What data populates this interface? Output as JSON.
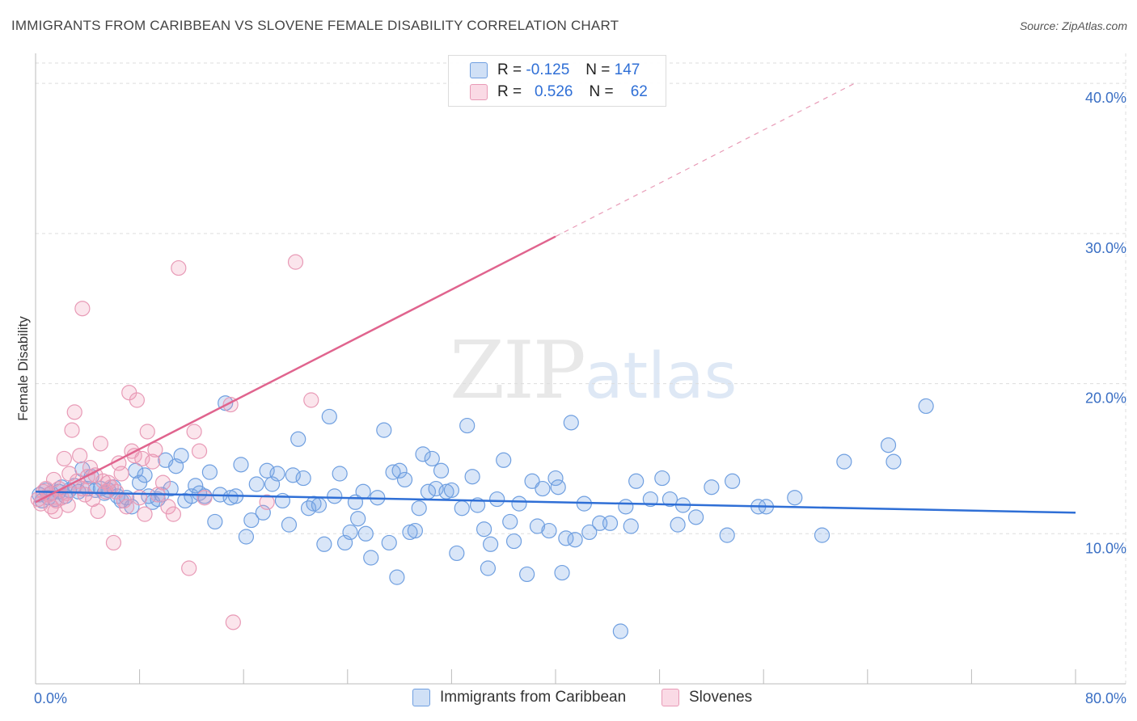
{
  "title": "IMMIGRANTS FROM CARIBBEAN VS SLOVENE FEMALE DISABILITY CORRELATION CHART",
  "source": "Source: ZipAtlas.com",
  "watermark": {
    "zip": "ZIP",
    "atlas": "atlas"
  },
  "colors": {
    "blue_fill": "rgba(120,165,230,0.28)",
    "blue_stroke": "#6f9fe0",
    "blue_line": "#2f6fd6",
    "pink_fill": "rgba(240,150,180,0.25)",
    "pink_stroke": "#e89ab6",
    "pink_line": "#e0648e",
    "grid": "#dddddd",
    "tick_label": "#3a6fc4"
  },
  "legend": {
    "r_label": "R =",
    "n_label": "N =",
    "series1": {
      "r": "-0.125",
      "n": "147"
    },
    "series2": {
      "r": "0.526",
      "n": "62"
    }
  },
  "chart_data": {
    "type": "scatter",
    "title": "IMMIGRANTS FROM CARIBBEAN VS SLOVENE FEMALE DISABILITY CORRELATION CHART",
    "xlabel": "",
    "ylabel": "Female Disability",
    "xlim": [
      0,
      80
    ],
    "ylim": [
      0,
      42
    ],
    "x_tick_labels": {
      "min": "0.0%",
      "max": "80.0%"
    },
    "y_ticks": [
      10,
      20,
      30,
      40
    ],
    "y_tick_labels": [
      "10.0%",
      "20.0%",
      "30.0%",
      "40.0%"
    ],
    "series": [
      {
        "name": "Immigrants from Caribbean",
        "trend": {
          "x0": 0,
          "y0": 12.8,
          "x1": 80,
          "y1": 11.4
        },
        "points": [
          [
            0.3,
            12.6
          ],
          [
            0.5,
            12.2
          ],
          [
            0.8,
            12.9
          ],
          [
            1.0,
            12.4
          ],
          [
            1.2,
            12.7
          ],
          [
            1.5,
            12.3
          ],
          [
            1.8,
            12.8
          ],
          [
            2.0,
            13.1
          ],
          [
            2.3,
            12.5
          ],
          [
            2.6,
            12.9
          ],
          [
            3.0,
            13.2
          ],
          [
            3.3,
            12.8
          ],
          [
            3.6,
            14.3
          ],
          [
            4.0,
            13.0
          ],
          [
            4.3,
            13.8
          ],
          [
            4.6,
            12.9
          ],
          [
            5.0,
            13.0
          ],
          [
            5.3,
            12.7
          ],
          [
            5.6,
            12.9
          ],
          [
            6.0,
            13.1
          ],
          [
            6.3,
            12.5
          ],
          [
            6.6,
            12.2
          ],
          [
            7.0,
            12.4
          ],
          [
            7.4,
            11.8
          ],
          [
            7.7,
            14.2
          ],
          [
            8.0,
            13.4
          ],
          [
            8.4,
            13.9
          ],
          [
            8.7,
            12.5
          ],
          [
            9.0,
            12.1
          ],
          [
            9.4,
            12.3
          ],
          [
            9.7,
            12.6
          ],
          [
            10.0,
            14.9
          ],
          [
            10.4,
            13.0
          ],
          [
            10.8,
            14.5
          ],
          [
            11.2,
            15.2
          ],
          [
            11.5,
            12.2
          ],
          [
            12.0,
            12.5
          ],
          [
            12.3,
            13.2
          ],
          [
            12.6,
            12.7
          ],
          [
            13.0,
            12.5
          ],
          [
            13.4,
            14.1
          ],
          [
            13.8,
            10.8
          ],
          [
            14.2,
            12.6
          ],
          [
            14.6,
            18.7
          ],
          [
            15.0,
            12.4
          ],
          [
            15.4,
            12.5
          ],
          [
            15.8,
            14.6
          ],
          [
            16.2,
            9.8
          ],
          [
            16.6,
            10.9
          ],
          [
            17.0,
            13.3
          ],
          [
            17.5,
            11.4
          ],
          [
            17.8,
            14.2
          ],
          [
            18.2,
            13.3
          ],
          [
            18.6,
            14.0
          ],
          [
            19.0,
            12.2
          ],
          [
            19.5,
            10.6
          ],
          [
            19.8,
            13.9
          ],
          [
            20.2,
            16.3
          ],
          [
            20.6,
            13.7
          ],
          [
            21.0,
            11.7
          ],
          [
            21.4,
            12.0
          ],
          [
            21.8,
            11.9
          ],
          [
            22.2,
            9.3
          ],
          [
            22.6,
            17.8
          ],
          [
            23.0,
            12.5
          ],
          [
            23.4,
            14.0
          ],
          [
            23.8,
            9.4
          ],
          [
            24.2,
            10.1
          ],
          [
            24.6,
            12.1
          ],
          [
            24.8,
            11.0
          ],
          [
            25.2,
            12.8
          ],
          [
            25.4,
            10.0
          ],
          [
            25.8,
            8.4
          ],
          [
            26.3,
            12.4
          ],
          [
            26.8,
            16.9
          ],
          [
            27.2,
            9.4
          ],
          [
            27.5,
            14.1
          ],
          [
            27.8,
            7.1
          ],
          [
            28.0,
            14.2
          ],
          [
            28.4,
            13.6
          ],
          [
            28.8,
            10.1
          ],
          [
            29.2,
            10.2
          ],
          [
            29.5,
            11.7
          ],
          [
            29.8,
            15.3
          ],
          [
            30.2,
            12.8
          ],
          [
            30.5,
            15.0
          ],
          [
            30.8,
            13.0
          ],
          [
            31.2,
            14.2
          ],
          [
            31.6,
            12.8
          ],
          [
            32.0,
            12.9
          ],
          [
            32.4,
            8.7
          ],
          [
            32.8,
            11.7
          ],
          [
            33.2,
            17.2
          ],
          [
            33.6,
            13.8
          ],
          [
            34.0,
            11.9
          ],
          [
            34.5,
            10.3
          ],
          [
            34.8,
            7.7
          ],
          [
            35.0,
            9.3
          ],
          [
            35.5,
            12.3
          ],
          [
            36.0,
            14.9
          ],
          [
            36.5,
            10.8
          ],
          [
            36.8,
            9.5
          ],
          [
            37.2,
            12.0
          ],
          [
            37.8,
            7.3
          ],
          [
            38.2,
            13.5
          ],
          [
            38.6,
            10.5
          ],
          [
            39.0,
            13.0
          ],
          [
            39.5,
            10.2
          ],
          [
            40.0,
            13.7
          ],
          [
            40.2,
            13.1
          ],
          [
            40.5,
            7.4
          ],
          [
            40.8,
            9.7
          ],
          [
            41.2,
            17.4
          ],
          [
            41.5,
            9.6
          ],
          [
            42.2,
            12.0
          ],
          [
            42.6,
            10.1
          ],
          [
            43.4,
            10.7
          ],
          [
            44.2,
            10.7
          ],
          [
            45.4,
            11.8
          ],
          [
            45.8,
            10.5
          ],
          [
            46.2,
            13.5
          ],
          [
            47.3,
            12.3
          ],
          [
            48.2,
            13.7
          ],
          [
            48.8,
            12.3
          ],
          [
            49.4,
            10.6
          ],
          [
            49.8,
            11.9
          ],
          [
            50.8,
            11.1
          ],
          [
            52.0,
            13.1
          ],
          [
            53.2,
            9.9
          ],
          [
            53.6,
            13.5
          ],
          [
            55.6,
            11.8
          ],
          [
            56.2,
            11.8
          ],
          [
            58.4,
            12.4
          ],
          [
            60.5,
            9.9
          ],
          [
            62.2,
            14.8
          ],
          [
            65.6,
            15.9
          ],
          [
            66.0,
            14.8
          ],
          [
            68.5,
            18.5
          ],
          [
            45.0,
            3.5
          ]
        ]
      },
      {
        "name": "Slovenes",
        "trend": {
          "x0": 0,
          "y0": 12.1,
          "x1": 40,
          "y1": 29.8,
          "dash_x1": 63,
          "dash_y1": 40.0
        },
        "points": [
          [
            0.2,
            12.3
          ],
          [
            0.4,
            12.0
          ],
          [
            0.6,
            12.8
          ],
          [
            0.8,
            13.0
          ],
          [
            1.0,
            12.6
          ],
          [
            1.2,
            11.8
          ],
          [
            1.4,
            13.6
          ],
          [
            1.6,
            12.2
          ],
          [
            1.8,
            13.0
          ],
          [
            2.0,
            12.4
          ],
          [
            2.2,
            15.0
          ],
          [
            2.4,
            12.7
          ],
          [
            2.6,
            14.0
          ],
          [
            2.8,
            16.9
          ],
          [
            3.0,
            18.1
          ],
          [
            3.2,
            13.5
          ],
          [
            3.4,
            15.2
          ],
          [
            3.6,
            13.0
          ],
          [
            3.8,
            12.6
          ],
          [
            4.0,
            13.8
          ],
          [
            4.2,
            14.4
          ],
          [
            4.4,
            12.3
          ],
          [
            4.6,
            13.9
          ],
          [
            4.8,
            11.5
          ],
          [
            5.0,
            16.0
          ],
          [
            5.2,
            13.5
          ],
          [
            5.4,
            12.8
          ],
          [
            5.6,
            13.4
          ],
          [
            5.8,
            13.1
          ],
          [
            6.0,
            9.4
          ],
          [
            6.2,
            12.8
          ],
          [
            6.4,
            14.7
          ],
          [
            6.6,
            14.0
          ],
          [
            6.8,
            12.2
          ],
          [
            7.0,
            11.8
          ],
          [
            7.2,
            19.4
          ],
          [
            7.4,
            15.5
          ],
          [
            7.6,
            15.2
          ],
          [
            7.8,
            18.9
          ],
          [
            8.0,
            12.4
          ],
          [
            8.2,
            15.0
          ],
          [
            8.4,
            11.3
          ],
          [
            8.6,
            16.8
          ],
          [
            9.0,
            14.8
          ],
          [
            9.2,
            15.6
          ],
          [
            9.4,
            12.6
          ],
          [
            9.8,
            13.4
          ],
          [
            10.2,
            11.8
          ],
          [
            10.6,
            11.3
          ],
          [
            11.0,
            27.7
          ],
          [
            11.8,
            7.7
          ],
          [
            12.2,
            16.8
          ],
          [
            12.6,
            15.5
          ],
          [
            13.0,
            12.4
          ],
          [
            15.0,
            18.6
          ],
          [
            15.2,
            4.1
          ],
          [
            17.8,
            12.1
          ],
          [
            20.0,
            28.1
          ],
          [
            21.2,
            18.9
          ],
          [
            1.5,
            11.5
          ],
          [
            2.5,
            11.9
          ],
          [
            3.6,
            25.0
          ]
        ]
      }
    ]
  },
  "bottom_legend": {
    "series1": "Immigrants from Caribbean",
    "series2": "Slovenes"
  }
}
